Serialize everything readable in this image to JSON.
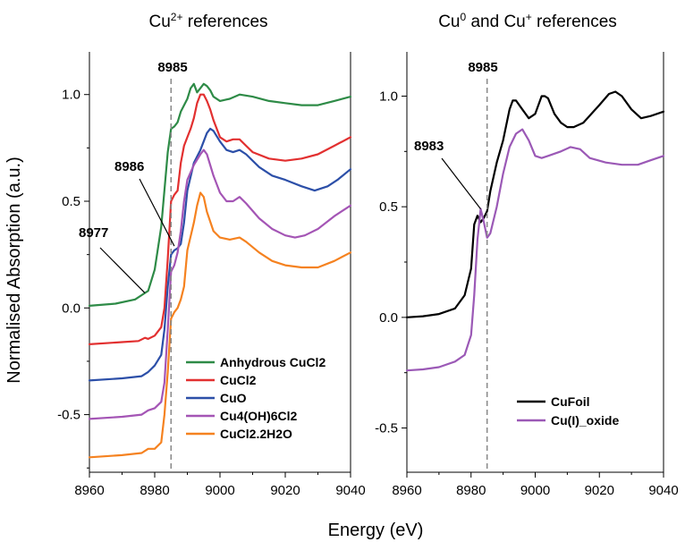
{
  "chart_data": [
    {
      "type": "line",
      "title_main": "Cu",
      "title_sup": "2+",
      "title_rest": " references",
      "xlabel": "Energy (eV)",
      "ylabel": "Normalised Absorption (a.u.)",
      "xlim": [
        8960,
        9040
      ],
      "ylim": [
        -0.77,
        1.2
      ],
      "xticks": [
        "8960",
        "8980",
        "9000",
        "9020",
        "9040"
      ],
      "xtick_values": [
        8960,
        8980,
        9000,
        9020,
        9040
      ],
      "yticks": [
        "-0.5",
        "0.0",
        "0.5",
        "1.0"
      ],
      "ytick_values": [
        -0.5,
        0.0,
        0.5,
        1.0
      ],
      "vline": {
        "x": 8985,
        "label": "8985",
        "color": "#888888"
      },
      "annotations": [
        {
          "text": "8986",
          "x": 8986,
          "y": 0.29
        },
        {
          "text": "8977",
          "x": 8977,
          "y": 0.07
        }
      ],
      "legend": "lower-right",
      "series": [
        {
          "name": "Anhydrous CuCl2",
          "color": "#2e8b47",
          "points": [
            [
              8960,
              0.01
            ],
            [
              8968,
              0.02
            ],
            [
              8974,
              0.04
            ],
            [
              8976,
              0.06
            ],
            [
              8978,
              0.08
            ],
            [
              8980,
              0.18
            ],
            [
              8982,
              0.38
            ],
            [
              8984,
              0.73
            ],
            [
              8985,
              0.84
            ],
            [
              8986,
              0.85
            ],
            [
              8987,
              0.87
            ],
            [
              8988,
              0.92
            ],
            [
              8990,
              0.98
            ],
            [
              8991,
              1.03
            ],
            [
              8992,
              1.05
            ],
            [
              8993,
              1.01
            ],
            [
              8994,
              1.03
            ],
            [
              8995,
              1.05
            ],
            [
              8996,
              1.04
            ],
            [
              8997,
              1.02
            ],
            [
              8998,
              0.99
            ],
            [
              9000,
              0.97
            ],
            [
              9003,
              0.98
            ],
            [
              9006,
              1.0
            ],
            [
              9010,
              0.99
            ],
            [
              9015,
              0.97
            ],
            [
              9020,
              0.96
            ],
            [
              9025,
              0.95
            ],
            [
              9030,
              0.95
            ],
            [
              9035,
              0.97
            ],
            [
              9040,
              0.99
            ]
          ]
        },
        {
          "name": "CuCl2",
          "color": "#e23030",
          "points": [
            [
              8960,
              -0.17
            ],
            [
              8970,
              -0.16
            ],
            [
              8975,
              -0.155
            ],
            [
              8977,
              -0.14
            ],
            [
              8978,
              -0.145
            ],
            [
              8980,
              -0.13
            ],
            [
              8982,
              -0.09
            ],
            [
              8983,
              0.0
            ],
            [
              8984,
              0.23
            ],
            [
              8985,
              0.5
            ],
            [
              8986,
              0.53
            ],
            [
              8987,
              0.55
            ],
            [
              8988,
              0.68
            ],
            [
              8989,
              0.76
            ],
            [
              8990,
              0.8
            ],
            [
              8991,
              0.84
            ],
            [
              8992,
              0.89
            ],
            [
              8993,
              0.96
            ],
            [
              8994,
              1.0
            ],
            [
              8995,
              1.0
            ],
            [
              8996,
              0.97
            ],
            [
              8997,
              0.93
            ],
            [
              8998,
              0.88
            ],
            [
              9000,
              0.8
            ],
            [
              9002,
              0.78
            ],
            [
              9004,
              0.79
            ],
            [
              9006,
              0.79
            ],
            [
              9008,
              0.76
            ],
            [
              9010,
              0.73
            ],
            [
              9015,
              0.7
            ],
            [
              9020,
              0.69
            ],
            [
              9025,
              0.7
            ],
            [
              9030,
              0.72
            ],
            [
              9035,
              0.76
            ],
            [
              9040,
              0.8
            ]
          ]
        },
        {
          "name": "CuO",
          "color": "#2c4fa8",
          "points": [
            [
              8960,
              -0.34
            ],
            [
              8970,
              -0.33
            ],
            [
              8976,
              -0.32
            ],
            [
              8978,
              -0.3
            ],
            [
              8980,
              -0.27
            ],
            [
              8982,
              -0.22
            ],
            [
              8983,
              -0.1
            ],
            [
              8984,
              0.1
            ],
            [
              8985,
              0.25
            ],
            [
              8986,
              0.27
            ],
            [
              8987,
              0.28
            ],
            [
              8988,
              0.3
            ],
            [
              8989,
              0.4
            ],
            [
              8990,
              0.55
            ],
            [
              8992,
              0.68
            ],
            [
              8994,
              0.74
            ],
            [
              8996,
              0.82
            ],
            [
              8997,
              0.84
            ],
            [
              8998,
              0.83
            ],
            [
              9000,
              0.78
            ],
            [
              9002,
              0.74
            ],
            [
              9004,
              0.73
            ],
            [
              9006,
              0.74
            ],
            [
              9008,
              0.72
            ],
            [
              9012,
              0.66
            ],
            [
              9016,
              0.62
            ],
            [
              9020,
              0.6
            ],
            [
              9025,
              0.57
            ],
            [
              9029,
              0.55
            ],
            [
              9033,
              0.57
            ],
            [
              9036,
              0.6
            ],
            [
              9040,
              0.65
            ]
          ]
        },
        {
          "name": "Cu4(OH)6Cl2",
          "color": "#a455b5",
          "points": [
            [
              8960,
              -0.52
            ],
            [
              8970,
              -0.51
            ],
            [
              8976,
              -0.5
            ],
            [
              8978,
              -0.48
            ],
            [
              8980,
              -0.47
            ],
            [
              8982,
              -0.44
            ],
            [
              8983,
              -0.35
            ],
            [
              8984,
              -0.1
            ],
            [
              8985,
              0.17
            ],
            [
              8986,
              0.2
            ],
            [
              8987,
              0.26
            ],
            [
              8988,
              0.36
            ],
            [
              8989,
              0.5
            ],
            [
              8990,
              0.6
            ],
            [
              8992,
              0.67
            ],
            [
              8994,
              0.72
            ],
            [
              8995,
              0.74
            ],
            [
              8996,
              0.72
            ],
            [
              8998,
              0.62
            ],
            [
              9000,
              0.54
            ],
            [
              9002,
              0.5
            ],
            [
              9004,
              0.5
            ],
            [
              9006,
              0.52
            ],
            [
              9008,
              0.49
            ],
            [
              9012,
              0.42
            ],
            [
              9016,
              0.37
            ],
            [
              9020,
              0.34
            ],
            [
              9023,
              0.33
            ],
            [
              9026,
              0.34
            ],
            [
              9030,
              0.37
            ],
            [
              9035,
              0.43
            ],
            [
              9040,
              0.48
            ]
          ]
        },
        {
          "name": "CuCl2.2H2O",
          "color": "#f58220",
          "points": [
            [
              8960,
              -0.7
            ],
            [
              8970,
              -0.69
            ],
            [
              8976,
              -0.68
            ],
            [
              8978,
              -0.66
            ],
            [
              8980,
              -0.66
            ],
            [
              8982,
              -0.63
            ],
            [
              8983,
              -0.5
            ],
            [
              8984,
              -0.3
            ],
            [
              8985,
              -0.05
            ],
            [
              8986,
              -0.02
            ],
            [
              8987,
              0.0
            ],
            [
              8988,
              0.04
            ],
            [
              8989,
              0.1
            ],
            [
              8990,
              0.27
            ],
            [
              8992,
              0.4
            ],
            [
              8993,
              0.48
            ],
            [
              8994,
              0.54
            ],
            [
              8995,
              0.52
            ],
            [
              8996,
              0.45
            ],
            [
              8998,
              0.36
            ],
            [
              9000,
              0.33
            ],
            [
              9003,
              0.32
            ],
            [
              9006,
              0.33
            ],
            [
              9008,
              0.31
            ],
            [
              9012,
              0.26
            ],
            [
              9016,
              0.22
            ],
            [
              9020,
              0.2
            ],
            [
              9025,
              0.19
            ],
            [
              9030,
              0.19
            ],
            [
              9035,
              0.22
            ],
            [
              9040,
              0.26
            ]
          ]
        }
      ]
    },
    {
      "type": "line",
      "title_main": "Cu",
      "title_sup": "0",
      "title_mid": " and Cu",
      "title_sup2": "+",
      "title_rest": " references",
      "xlim": [
        8960,
        9040
      ],
      "ylim": [
        -0.7,
        1.2
      ],
      "xticks": [
        "8960",
        "8980",
        "9000",
        "9020",
        "9040"
      ],
      "xtick_values": [
        8960,
        8980,
        9000,
        9020,
        9040
      ],
      "yticks": [
        "-0.5",
        "0.0",
        "0.5",
        "1.0"
      ],
      "ytick_values": [
        -0.5,
        0.0,
        0.5,
        1.0
      ],
      "vline": {
        "x": 8985,
        "label": "8985",
        "color": "#888888"
      },
      "annotations": [
        {
          "text": "8983",
          "x": 8983,
          "y": 0.49
        }
      ],
      "legend": "lower-right",
      "series": [
        {
          "name": "CuFoil",
          "color": "#000000",
          "points": [
            [
              8960,
              0.0
            ],
            [
              8965,
              0.005
            ],
            [
              8970,
              0.015
            ],
            [
              8975,
              0.04
            ],
            [
              8978,
              0.1
            ],
            [
              8980,
              0.22
            ],
            [
              8981,
              0.42
            ],
            [
              8982,
              0.46
            ],
            [
              8983,
              0.43
            ],
            [
              8984,
              0.45
            ],
            [
              8985,
              0.48
            ],
            [
              8986,
              0.57
            ],
            [
              8988,
              0.7
            ],
            [
              8990,
              0.8
            ],
            [
              8992,
              0.94
            ],
            [
              8993,
              0.98
            ],
            [
              8994,
              0.98
            ],
            [
              8996,
              0.94
            ],
            [
              8998,
              0.9
            ],
            [
              9000,
              0.92
            ],
            [
              9002,
              1.0
            ],
            [
              9003,
              1.0
            ],
            [
              9004,
              0.99
            ],
            [
              9006,
              0.92
            ],
            [
              9008,
              0.88
            ],
            [
              9010,
              0.86
            ],
            [
              9012,
              0.86
            ],
            [
              9015,
              0.88
            ],
            [
              9020,
              0.96
            ],
            [
              9023,
              1.01
            ],
            [
              9025,
              1.02
            ],
            [
              9027,
              1.0
            ],
            [
              9030,
              0.94
            ],
            [
              9033,
              0.9
            ],
            [
              9036,
              0.91
            ],
            [
              9040,
              0.93
            ]
          ]
        },
        {
          "name": "Cu(I)_oxide",
          "color": "#9b59b6",
          "points": [
            [
              8960,
              -0.24
            ],
            [
              8965,
              -0.235
            ],
            [
              8970,
              -0.225
            ],
            [
              8975,
              -0.2
            ],
            [
              8978,
              -0.17
            ],
            [
              8980,
              -0.08
            ],
            [
              8981,
              0.1
            ],
            [
              8982,
              0.35
            ],
            [
              8983,
              0.49
            ],
            [
              8984,
              0.43
            ],
            [
              8985,
              0.36
            ],
            [
              8986,
              0.38
            ],
            [
              8988,
              0.5
            ],
            [
              8990,
              0.65
            ],
            [
              8992,
              0.77
            ],
            [
              8994,
              0.83
            ],
            [
              8996,
              0.85
            ],
            [
              8998,
              0.8
            ],
            [
              9000,
              0.73
            ],
            [
              9002,
              0.72
            ],
            [
              9004,
              0.73
            ],
            [
              9008,
              0.75
            ],
            [
              9011,
              0.77
            ],
            [
              9014,
              0.76
            ],
            [
              9017,
              0.72
            ],
            [
              9022,
              0.7
            ],
            [
              9027,
              0.69
            ],
            [
              9032,
              0.69
            ],
            [
              9036,
              0.71
            ],
            [
              9040,
              0.73
            ]
          ]
        }
      ]
    }
  ]
}
